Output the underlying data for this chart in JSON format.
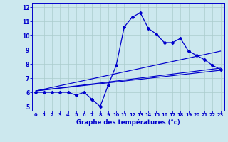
{
  "xlabel": "Graphe des températures (°c)",
  "x_values": [
    0,
    1,
    2,
    3,
    4,
    5,
    6,
    7,
    8,
    9,
    10,
    11,
    12,
    13,
    14,
    15,
    16,
    17,
    18,
    19,
    20,
    21,
    22,
    23
  ],
  "main_line": [
    6.0,
    6.0,
    6.0,
    6.0,
    6.0,
    5.8,
    6.0,
    5.5,
    5.0,
    6.5,
    7.9,
    10.6,
    11.3,
    11.6,
    10.5,
    10.1,
    9.5,
    9.5,
    9.8,
    8.9,
    8.6,
    8.3,
    7.9,
    7.6
  ],
  "regression_lines": [
    {
      "start_x": 0,
      "start_y": 6.1,
      "end_x": 23,
      "end_y": 8.9
    },
    {
      "start_x": 0,
      "start_y": 6.1,
      "end_x": 23,
      "end_y": 7.7
    },
    {
      "start_x": 0,
      "start_y": 6.1,
      "end_x": 23,
      "end_y": 7.55
    }
  ],
  "line_color": "#0000cc",
  "bg_color": "#cce8ee",
  "grid_color": "#aacccc",
  "ylim": [
    4.7,
    12.3
  ],
  "xlim": [
    -0.5,
    23.5
  ],
  "yticks": [
    5,
    6,
    7,
    8,
    9,
    10,
    11,
    12
  ],
  "xticks": [
    0,
    1,
    2,
    3,
    4,
    5,
    6,
    7,
    8,
    9,
    10,
    11,
    12,
    13,
    14,
    15,
    16,
    17,
    18,
    19,
    20,
    21,
    22,
    23
  ]
}
